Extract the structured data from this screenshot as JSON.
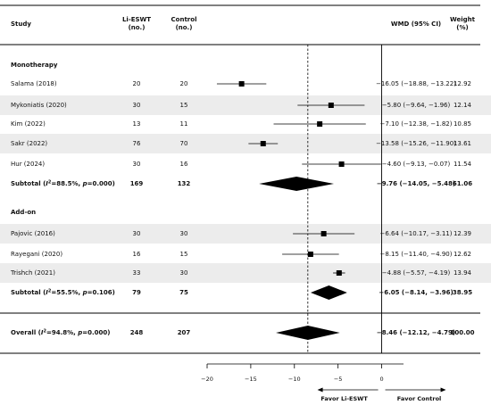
{
  "chart_data": {
    "type": "forest",
    "headers": {
      "study": "Study",
      "li_eswt": [
        "Li-ESWT",
        "(no.)"
      ],
      "control": [
        "Control",
        "(no.)"
      ],
      "wmd": "WMD (95% CI)",
      "weight": [
        "Weight",
        "(%)"
      ]
    },
    "groups": [
      {
        "name": "Monotherapy",
        "studies": [
          {
            "study": "Salama (2018)",
            "li_eswt": "20",
            "control": "20",
            "est": -16.05,
            "lo": -18.88,
            "hi": -13.22,
            "ci_text": "−16.05 (−18.88, −13.22)",
            "weight": "12.92"
          },
          {
            "study": "Mykoniatis (2020)",
            "li_eswt": "30",
            "control": "15",
            "est": -5.8,
            "lo": -9.64,
            "hi": -1.96,
            "ci_text": "−5.80 (−9.64, −1.96)",
            "weight": "12.14"
          },
          {
            "study": "Kim (2022)",
            "li_eswt": "13",
            "control": "11",
            "est": -7.1,
            "lo": -12.38,
            "hi": -1.82,
            "ci_text": "−7.10 (−12.38, −1.82)",
            "weight": "10.85"
          },
          {
            "study": "Sakr (2022)",
            "li_eswt": "76",
            "control": "70",
            "est": -13.58,
            "lo": -15.26,
            "hi": -11.9,
            "ci_text": "−13.58 (−15.26, −11.90)",
            "weight": "13.61"
          },
          {
            "study": "Hur (2024)",
            "li_eswt": "30",
            "control": "16",
            "est": -4.6,
            "lo": -9.13,
            "hi": -0.07,
            "ci_text": "−4.60 (−9.13, −0.07)",
            "weight": "11.54"
          }
        ],
        "subtotal": {
          "label": "Subtotal (I²=88.5%, p=0.000)",
          "label_prefix": "Subtotal (",
          "label_i": "I",
          "label_i2_rest": "=88.5%, ",
          "label_p": "p",
          "label_p_rest": "=0.000)",
          "li_eswt": "169",
          "control": "132",
          "est": -9.76,
          "lo": -14.05,
          "hi": -5.48,
          "ci_text": "−9.76 (−14.05, −5.48)",
          "weight": "61.06"
        }
      },
      {
        "name": "Add-on",
        "studies": [
          {
            "study": "Pajovic (2016)",
            "li_eswt": "30",
            "control": "30",
            "est": -6.64,
            "lo": -10.17,
            "hi": -3.11,
            "ci_text": "−6.64 (−10.17, −3.11)",
            "weight": "12.39"
          },
          {
            "study": "Rayegani (2020)",
            "li_eswt": "16",
            "control": "15",
            "est": -8.15,
            "lo": -11.4,
            "hi": -4.9,
            "ci_text": "−8.15 (−11.40, −4.90)",
            "weight": "12.62"
          },
          {
            "study": "Trishch (2021)",
            "li_eswt": "33",
            "control": "30",
            "est": -4.88,
            "lo": -5.57,
            "hi": -4.19,
            "ci_text": "−4.88 (−5.57, −4.19)",
            "weight": "13.94"
          }
        ],
        "subtotal": {
          "label": "Subtotal (I²=55.5%, p=0.106)",
          "label_prefix": "Subtotal (",
          "label_i": "I",
          "label_i2_rest": "=55.5%, ",
          "label_p": "p",
          "label_p_rest": "=0.106)",
          "li_eswt": "79",
          "control": "75",
          "est": -6.05,
          "lo": -8.14,
          "hi": -3.96,
          "ci_text": "−6.05 (−8.14, −3.96)",
          "weight": "38.95"
        }
      }
    ],
    "overall": {
      "label": "Overall (I²=94.8%, p=0.000)",
      "label_prefix": "Overall (",
      "label_i": "I",
      "label_i2_rest": "=94.8%, ",
      "label_p": "p",
      "label_p_rest": "=0.000)",
      "li_eswt": "248",
      "control": "207",
      "est": -8.46,
      "lo": -12.12,
      "hi": -4.79,
      "ci_text": "−8.46 (−12.12, −4.79)",
      "weight": "100.00"
    },
    "xaxis": {
      "ticks": [
        -20,
        -15,
        -10,
        -5,
        0
      ],
      "tick_labels": [
        "−20",
        "−15",
        "−10",
        "−5",
        "0"
      ],
      "xlim": [
        -20,
        2.5
      ],
      "null_line": 0
    },
    "favor_left": "Favor Li-ESWT",
    "favor_right": "Favor Control",
    "colors": {
      "stripe": "#ececec",
      "marker": "#000000",
      "line": "#000000"
    }
  }
}
